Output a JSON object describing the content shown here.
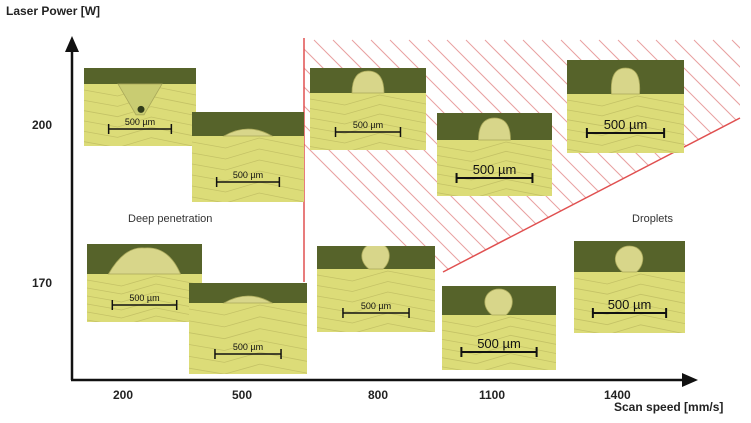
{
  "axes": {
    "y_title": "Laser Power [W]",
    "x_title": "Scan speed [mm/s]",
    "y_ticks": [
      "200",
      "170"
    ],
    "x_ticks": [
      "200",
      "500",
      "800",
      "1100",
      "1400"
    ]
  },
  "regions": {
    "deep_penetration": "Deep penetration",
    "droplets": "Droplets"
  },
  "micrographs": [
    {
      "power": "200",
      "speed": "200",
      "scale": "500 µm",
      "morphology": "keyhole-pore"
    },
    {
      "power": "200",
      "speed": "500",
      "scale": "500 µm",
      "morphology": "flat-bump"
    },
    {
      "power": "200",
      "speed": "800",
      "scale": "500 µm",
      "morphology": "dome"
    },
    {
      "power": "200",
      "speed": "1100",
      "scale": "500 µm",
      "morphology": "dome"
    },
    {
      "power": "200",
      "speed": "1400",
      "scale": "500 µm",
      "morphology": "tall-dome"
    },
    {
      "power": "170",
      "speed": "200",
      "scale": "500 µm",
      "morphology": "wide-dome"
    },
    {
      "power": "170",
      "speed": "500",
      "scale": "500 µm",
      "morphology": "flat-bump"
    },
    {
      "power": "170",
      "speed": "800",
      "scale": "500 µm",
      "morphology": "droplet"
    },
    {
      "power": "170",
      "speed": "1100",
      "scale": "500 µm",
      "morphology": "droplet"
    },
    {
      "power": "170",
      "speed": "1400",
      "scale": "500 µm",
      "morphology": "droplet"
    }
  ],
  "colors": {
    "substrate": "#dcdc78",
    "background": "#56632a",
    "bead": "#d8d68a",
    "boundary": "#e05050",
    "hatch": "#e8a0a0",
    "axis": "#111111"
  }
}
